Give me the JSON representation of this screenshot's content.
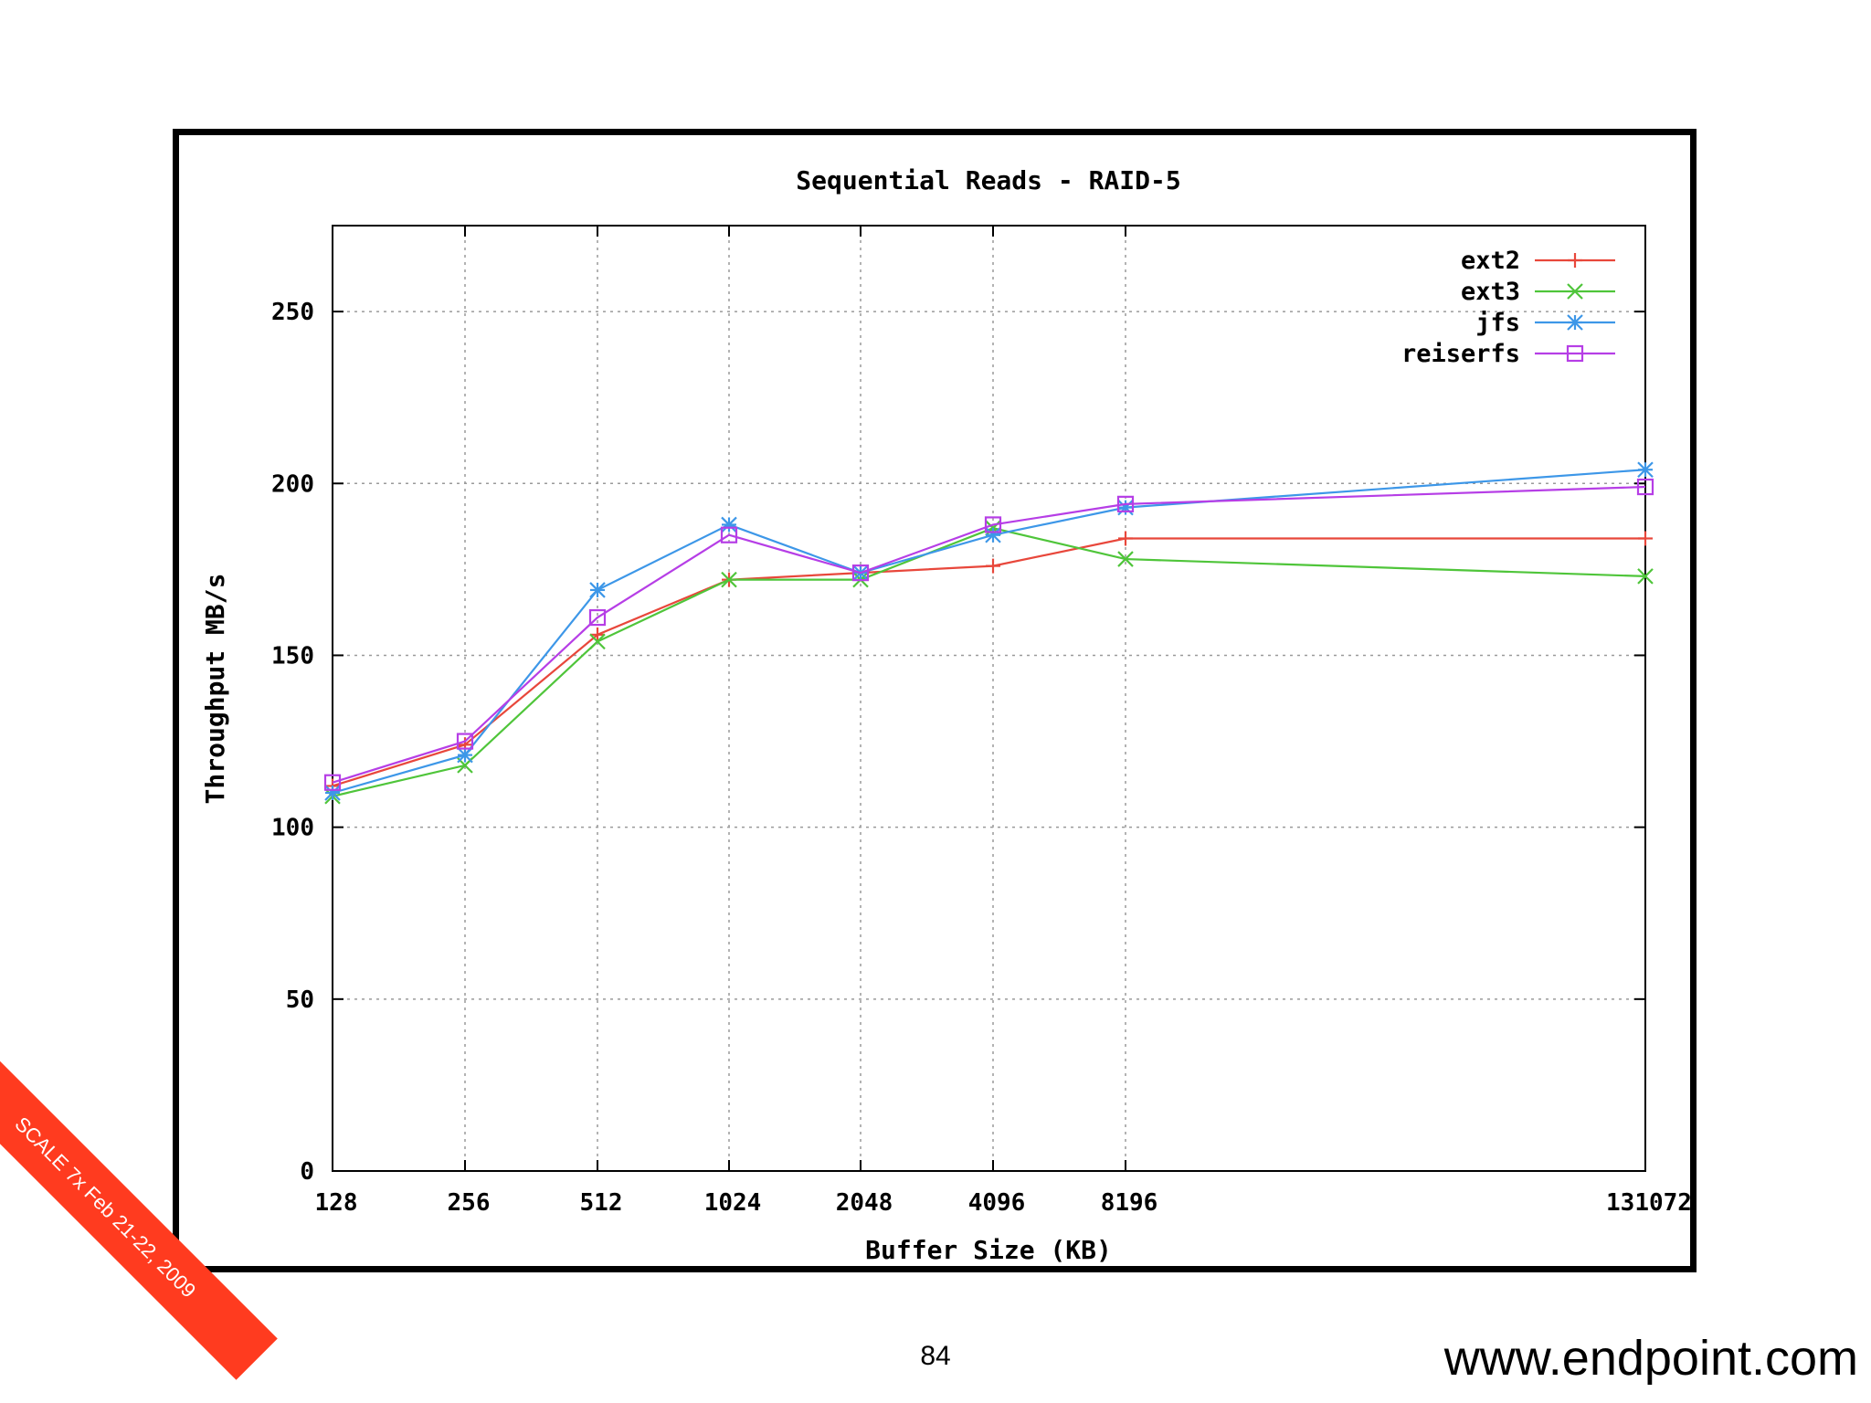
{
  "slide": {
    "page_number": "84",
    "site_url": "www.endpoint.com",
    "banner_text": "SCALE 7x Feb 21-22, 2009",
    "banner_color": "#ff3b1f"
  },
  "chart_data": {
    "type": "line",
    "title": "Sequential Reads - RAID-5",
    "xlabel": "Buffer Size (KB)",
    "ylabel": "Throughput MB/s",
    "categories": [
      "128",
      "256",
      "512",
      "1024",
      "2048",
      "4096",
      "8196",
      "131072"
    ],
    "x_axis_note": "categorical ticks; gap before 131072",
    "ylim": [
      0,
      275
    ],
    "yticks": [
      0,
      50,
      100,
      150,
      200,
      250
    ],
    "grid": true,
    "legend_position": "top-right",
    "series": [
      {
        "name": "ext2",
        "color": "#e8473b",
        "marker": "plus",
        "values": [
          112,
          124,
          156,
          172,
          174,
          176,
          184,
          184
        ]
      },
      {
        "name": "ext3",
        "color": "#4fc53a",
        "marker": "x",
        "values": [
          109,
          118,
          154,
          172,
          172,
          187,
          178,
          173
        ]
      },
      {
        "name": "jfs",
        "color": "#3d97e8",
        "marker": "star",
        "values": [
          110,
          121,
          169,
          188,
          174,
          185,
          193,
          204
        ]
      },
      {
        "name": "reiserfs",
        "color": "#b63ee6",
        "marker": "square",
        "values": [
          113,
          125,
          161,
          185,
          174,
          188,
          194,
          199
        ]
      }
    ]
  }
}
